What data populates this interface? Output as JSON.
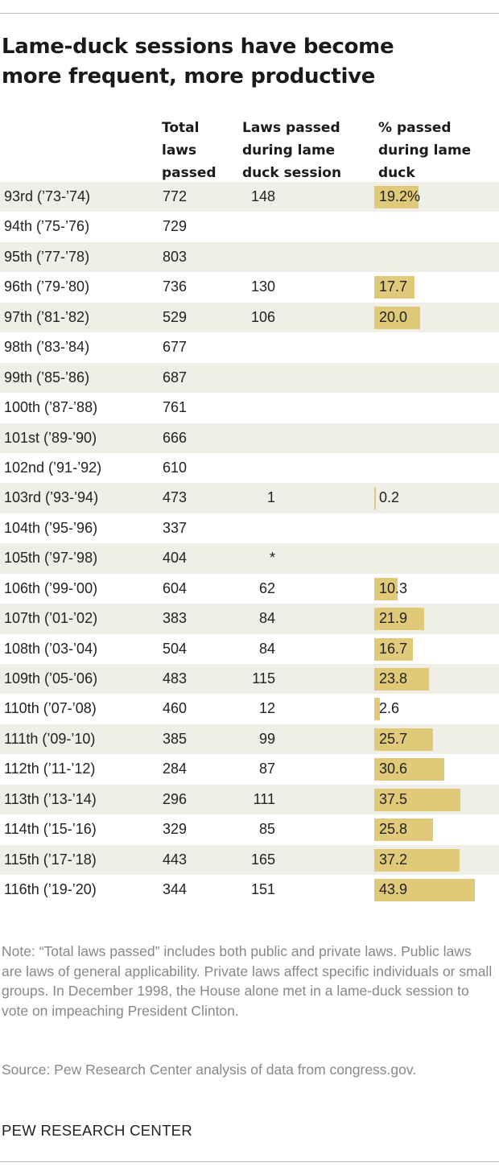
{
  "title_lines": [
    "Lame-duck sessions have become",
    "more frequent, more productive"
  ],
  "columns": {
    "total": [
      "Total",
      "laws",
      "passed"
    ],
    "lame": [
      "Laws passed",
      "during lame",
      "duck session"
    ],
    "pct": [
      "% passed",
      "during lame",
      "duck"
    ]
  },
  "chart_data": {
    "type": "table",
    "title": "Lame-duck sessions have become more frequent, more productive",
    "column_headers": [
      "",
      "Total laws passed",
      "Laws passed during lame duck session",
      "% passed during lame duck"
    ],
    "pct_bar_color": "#e1c97a",
    "pct_axis_max": 43.9,
    "rows": [
      {
        "congress": "93rd (’73-’74)",
        "total": "772",
        "lame": "148",
        "pct": "19.2%",
        "pct_value": 19.2
      },
      {
        "congress": "94th (’75-’76)",
        "total": "729",
        "lame": "",
        "pct": "",
        "pct_value": null
      },
      {
        "congress": "95th (’77-’78)",
        "total": "803",
        "lame": "",
        "pct": "",
        "pct_value": null
      },
      {
        "congress": "96th (’79-’80)",
        "total": "736",
        "lame": "130",
        "pct": "17.7",
        "pct_value": 17.7
      },
      {
        "congress": "97th (’81-’82)",
        "total": "529",
        "lame": "106",
        "pct": "20.0",
        "pct_value": 20.0
      },
      {
        "congress": "98th (’83-’84)",
        "total": "677",
        "lame": "",
        "pct": "",
        "pct_value": null
      },
      {
        "congress": "99th (’85-’86)",
        "total": "687",
        "lame": "",
        "pct": "",
        "pct_value": null
      },
      {
        "congress": "100th (’87-’88)",
        "total": "761",
        "lame": "",
        "pct": "",
        "pct_value": null
      },
      {
        "congress": "101st (’89-’90)",
        "total": "666",
        "lame": "",
        "pct": "",
        "pct_value": null
      },
      {
        "congress": "102nd (’91-’92)",
        "total": "610",
        "lame": "",
        "pct": "",
        "pct_value": null
      },
      {
        "congress": "103rd (’93-’94)",
        "total": "473",
        "lame": "1",
        "pct": "0.2",
        "pct_value": 0.2
      },
      {
        "congress": "104th (’95-’96)",
        "total": "337",
        "lame": "",
        "pct": "",
        "pct_value": null
      },
      {
        "congress": "105th (’97-’98)",
        "total": "404",
        "lame": "*",
        "pct": "",
        "pct_value": null
      },
      {
        "congress": "106th (’99-’00)",
        "total": "604",
        "lame": "62",
        "pct": "10.3",
        "pct_value": 10.3
      },
      {
        "congress": "107th (’01-’02)",
        "total": "383",
        "lame": "84",
        "pct": "21.9",
        "pct_value": 21.9
      },
      {
        "congress": "108th (’03-’04)",
        "total": "504",
        "lame": "84",
        "pct": "16.7",
        "pct_value": 16.7
      },
      {
        "congress": "109th (’05-’06)",
        "total": "483",
        "lame": "115",
        "pct": "23.8",
        "pct_value": 23.8
      },
      {
        "congress": "110th (’07-’08)",
        "total": "460",
        "lame": "12",
        "pct": "2.6",
        "pct_value": 2.6
      },
      {
        "congress": "111th (’09-’10)",
        "total": "385",
        "lame": "99",
        "pct": "25.7",
        "pct_value": 25.7
      },
      {
        "congress": "112th (’11-’12)",
        "total": "284",
        "lame": "87",
        "pct": "30.6",
        "pct_value": 30.6
      },
      {
        "congress": "113th (’13-’14)",
        "total": "296",
        "lame": "111",
        "pct": "37.5",
        "pct_value": 37.5
      },
      {
        "congress": "114th (’15-’16)",
        "total": "329",
        "lame": "85",
        "pct": "25.8",
        "pct_value": 25.8
      },
      {
        "congress": "115th (’17-’18)",
        "total": "443",
        "lame": "165",
        "pct": "37.2",
        "pct_value": 37.2
      },
      {
        "congress": "116th (’19-’20)",
        "total": "344",
        "lame": "151",
        "pct": "43.9",
        "pct_value": 43.9
      }
    ]
  },
  "note": "Note: “Total laws passed” includes both public and private laws. Public laws are laws of general applicability. Private laws affect specific individuals or small groups. In December 1998, the House alone met in a lame-duck session to vote on impeaching President Clinton.",
  "source": "Source: Pew Research Center analysis of data from congress.gov.",
  "brand": "PEW RESEARCH CENTER"
}
